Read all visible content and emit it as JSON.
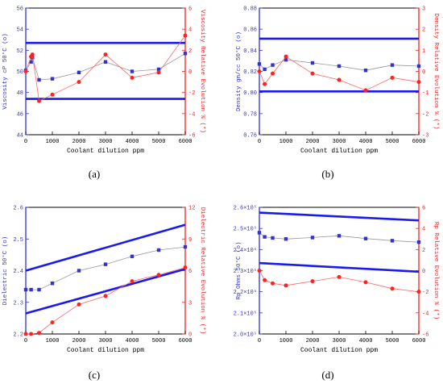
{
  "figure_labels": [
    "(a)",
    "(b)",
    "(c)",
    "(d)"
  ],
  "chart_data": [
    {
      "type": "line",
      "panel": "(a)",
      "xlabel": "Coolant dilution ppm",
      "ylabel_left": "Viscosity cP 50°C (o)",
      "ylabel_right": "Viscosity Relative Evolution % (*)",
      "xlim": [
        0,
        6000
      ],
      "ylim_left": [
        44,
        56
      ],
      "ylim_right": [
        -6,
        6
      ],
      "xticks": [
        "0",
        "1000",
        "2000",
        "3000",
        "4000",
        "5000",
        "6000"
      ],
      "yticks_left": [
        "44",
        "46",
        "48",
        "50",
        "52",
        "54",
        "56"
      ],
      "yticks_right": [
        "-6",
        "-4",
        "-2",
        "0",
        "2",
        "4",
        "6"
      ],
      "series": [
        {
          "axis": "left",
          "color": "#3333cc",
          "marker": "square",
          "x": [
            0,
            200,
            250,
            500,
            1000,
            2000,
            3000,
            4000,
            5000,
            6000
          ],
          "y": [
            50.1,
            50.9,
            51.3,
            49.2,
            49.3,
            49.9,
            50.9,
            50.0,
            50.2,
            51.7
          ]
        },
        {
          "axis": "right",
          "color": "#ff2222",
          "marker": "circle",
          "x": [
            0,
            200,
            250,
            500,
            1000,
            2000,
            3000,
            4000,
            5000,
            6000
          ],
          "y": [
            0,
            1.4,
            1.6,
            -2.8,
            -2.2,
            -1.0,
            1.6,
            -0.6,
            -0.1,
            3.4
          ]
        }
      ],
      "limit_lines": [
        {
          "axis": "left",
          "color": "#1a1aee",
          "x": [
            0,
            6000
          ],
          "y": [
            52.7,
            52.7
          ]
        },
        {
          "axis": "left",
          "color": "#1a1aee",
          "x": [
            0,
            6000
          ],
          "y": [
            47.4,
            47.4
          ]
        }
      ]
    },
    {
      "type": "line",
      "panel": "(b)",
      "xlabel": "Coolant dilution ppm",
      "ylabel_left": "Density gm/cc 50°C (o)",
      "ylabel_right": "Density Relative Evolution % (*)",
      "xlim": [
        0,
        6000
      ],
      "ylim_left": [
        0.76,
        0.88
      ],
      "ylim_right": [
        -3,
        3
      ],
      "xticks": [
        "0",
        "1000",
        "2000",
        "3000",
        "4000",
        "5000",
        "6000"
      ],
      "yticks_left": [
        "0.76",
        "0.78",
        "0.80",
        "0.82",
        "0.84",
        "0.86",
        "0.88"
      ],
      "yticks_right": [
        "-3",
        "-2",
        "-1",
        "0",
        "1",
        "2",
        "3"
      ],
      "series": [
        {
          "axis": "left",
          "color": "#3333cc",
          "marker": "square",
          "x": [
            0,
            200,
            500,
            1000,
            2000,
            3000,
            4000,
            5000,
            6000
          ],
          "y": [
            0.827,
            0.822,
            0.826,
            0.831,
            0.828,
            0.825,
            0.821,
            0.826,
            0.825
          ]
        },
        {
          "axis": "right",
          "color": "#ff2222",
          "marker": "circle",
          "x": [
            0,
            200,
            500,
            1000,
            2000,
            3000,
            4000,
            5000,
            6000
          ],
          "y": [
            0,
            -0.6,
            -0.1,
            0.7,
            -0.1,
            -0.4,
            -0.9,
            -0.3,
            -0.5
          ]
        }
      ],
      "limit_lines": [
        {
          "axis": "left",
          "color": "#1a1aee",
          "x": [
            0,
            6000
          ],
          "y": [
            0.851,
            0.851
          ]
        },
        {
          "axis": "left",
          "color": "#1a1aee",
          "x": [
            0,
            6000
          ],
          "y": [
            0.801,
            0.801
          ]
        }
      ]
    },
    {
      "type": "line",
      "panel": "(c)",
      "xlabel": "Coolant dilution ppm",
      "ylabel_left": "Dielectric 50°C (o)",
      "ylabel_right": "Dielectric Relative Evolution % (*)",
      "xlim": [
        0,
        6000
      ],
      "ylim_left": [
        2.2,
        2.6
      ],
      "ylim_right": [
        0,
        12
      ],
      "xticks": [
        "0",
        "1000",
        "2000",
        "3000",
        "4000",
        "5000",
        "6000"
      ],
      "yticks_left": [
        "2.2",
        "2.3",
        "2.4",
        "2.5",
        "2.6"
      ],
      "yticks_right": [
        "0",
        "3",
        "6",
        "9",
        "12"
      ],
      "series": [
        {
          "axis": "left",
          "color": "#3333cc",
          "marker": "square",
          "x": [
            0,
            200,
            500,
            1000,
            2000,
            3000,
            4000,
            5000,
            6000
          ],
          "y": [
            2.34,
            2.34,
            2.34,
            2.36,
            2.4,
            2.42,
            2.445,
            2.465,
            2.475
          ]
        },
        {
          "axis": "right",
          "color": "#ff2222",
          "marker": "circle",
          "x": [
            0,
            200,
            500,
            1000,
            2000,
            3000,
            4000,
            5000,
            6000
          ],
          "y": [
            0,
            0,
            0.1,
            1.1,
            2.8,
            3.6,
            5.0,
            5.6,
            6.3
          ]
        }
      ],
      "limit_lines": [
        {
          "axis": "left",
          "color": "#1a1aee",
          "x": [
            0,
            6000
          ],
          "y": [
            2.4,
            2.545
          ]
        },
        {
          "axis": "left",
          "color": "#1a1aee",
          "x": [
            0,
            6000
          ],
          "y": [
            2.265,
            2.405
          ]
        }
      ]
    },
    {
      "type": "line",
      "panel": "(d)",
      "xlabel": "Coolant dilution ppm",
      "ylabel_left": "Rp Ohms 50°C (o)",
      "ylabel_right": "Rp Relative Evolution % (*)",
      "xlim": [
        0,
        6000
      ],
      "ylim_left": [
        200000,
        260000
      ],
      "ylim_right": [
        -6,
        6
      ],
      "xticks": [
        "0",
        "1000",
        "2000",
        "3000",
        "4000",
        "5000",
        "6000"
      ],
      "yticks_left": [
        "2.0×10⁵",
        "2.1×10⁵",
        "2.2×10⁵",
        "2.3×10⁵",
        "2.4×10⁵",
        "2.5×10⁵",
        "2.6×10⁵"
      ],
      "yticks_right": [
        "-6",
        "-4",
        "-2",
        "0",
        "2",
        "4",
        "6"
      ],
      "series": [
        {
          "axis": "left",
          "color": "#3333cc",
          "marker": "square",
          "x": [
            0,
            200,
            500,
            1000,
            2000,
            3000,
            4000,
            5000,
            6000
          ],
          "y": [
            248000,
            246000,
            245500,
            245000,
            245700,
            246500,
            245200,
            244200,
            243500
          ]
        },
        {
          "axis": "right",
          "color": "#ff2222",
          "marker": "circle",
          "x": [
            0,
            200,
            500,
            1000,
            2000,
            3000,
            4000,
            5000,
            6000
          ],
          "y": [
            0,
            -0.9,
            -1.2,
            -1.4,
            -1.0,
            -0.6,
            -1.1,
            -1.7,
            -2.0
          ]
        }
      ],
      "limit_lines": [
        {
          "axis": "left",
          "color": "#1a1aee",
          "x": [
            0,
            6000
          ],
          "y": [
            257500,
            253800
          ]
        },
        {
          "axis": "left",
          "color": "#1a1aee",
          "x": [
            0,
            6000
          ],
          "y": [
            233600,
            229500
          ]
        }
      ]
    }
  ]
}
